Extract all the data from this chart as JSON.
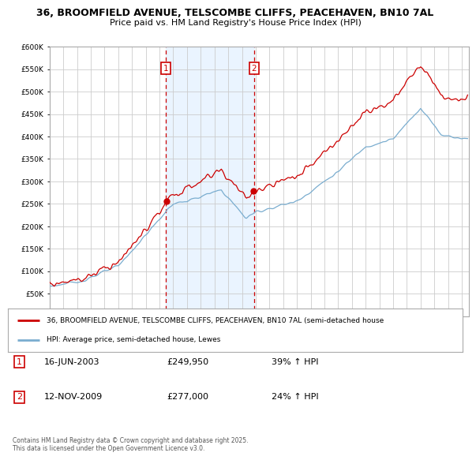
{
  "title_line1": "36, BROOMFIELD AVENUE, TELSCOMBE CLIFFS, PEACEHAVEN, BN10 7AL",
  "title_line2": "Price paid vs. HM Land Registry's House Price Index (HPI)",
  "background_color": "#ffffff",
  "plot_bg_color": "#ffffff",
  "grid_color": "#cccccc",
  "red_color": "#cc0000",
  "blue_color": "#7aadcf",
  "shade_color": "#ddeeff",
  "marker1_year": 2003.46,
  "marker2_year": 2009.87,
  "legend_line1": "36, BROOMFIELD AVENUE, TELSCOMBE CLIFFS, PEACEHAVEN, BN10 7AL (semi-detached house",
  "legend_line2": "HPI: Average price, semi-detached house, Lewes",
  "table_data": [
    {
      "num": "1",
      "date": "16-JUN-2003",
      "price": "£249,950",
      "change": "39% ↑ HPI"
    },
    {
      "num": "2",
      "date": "12-NOV-2009",
      "price": "£277,000",
      "change": "24% ↑ HPI"
    }
  ],
  "footnote": "Contains HM Land Registry data © Crown copyright and database right 2025.\nThis data is licensed under the Open Government Licence v3.0.",
  "ylim_max": 600000,
  "ylim_min": 0,
  "xmin": 1995,
  "xmax": 2025.5
}
